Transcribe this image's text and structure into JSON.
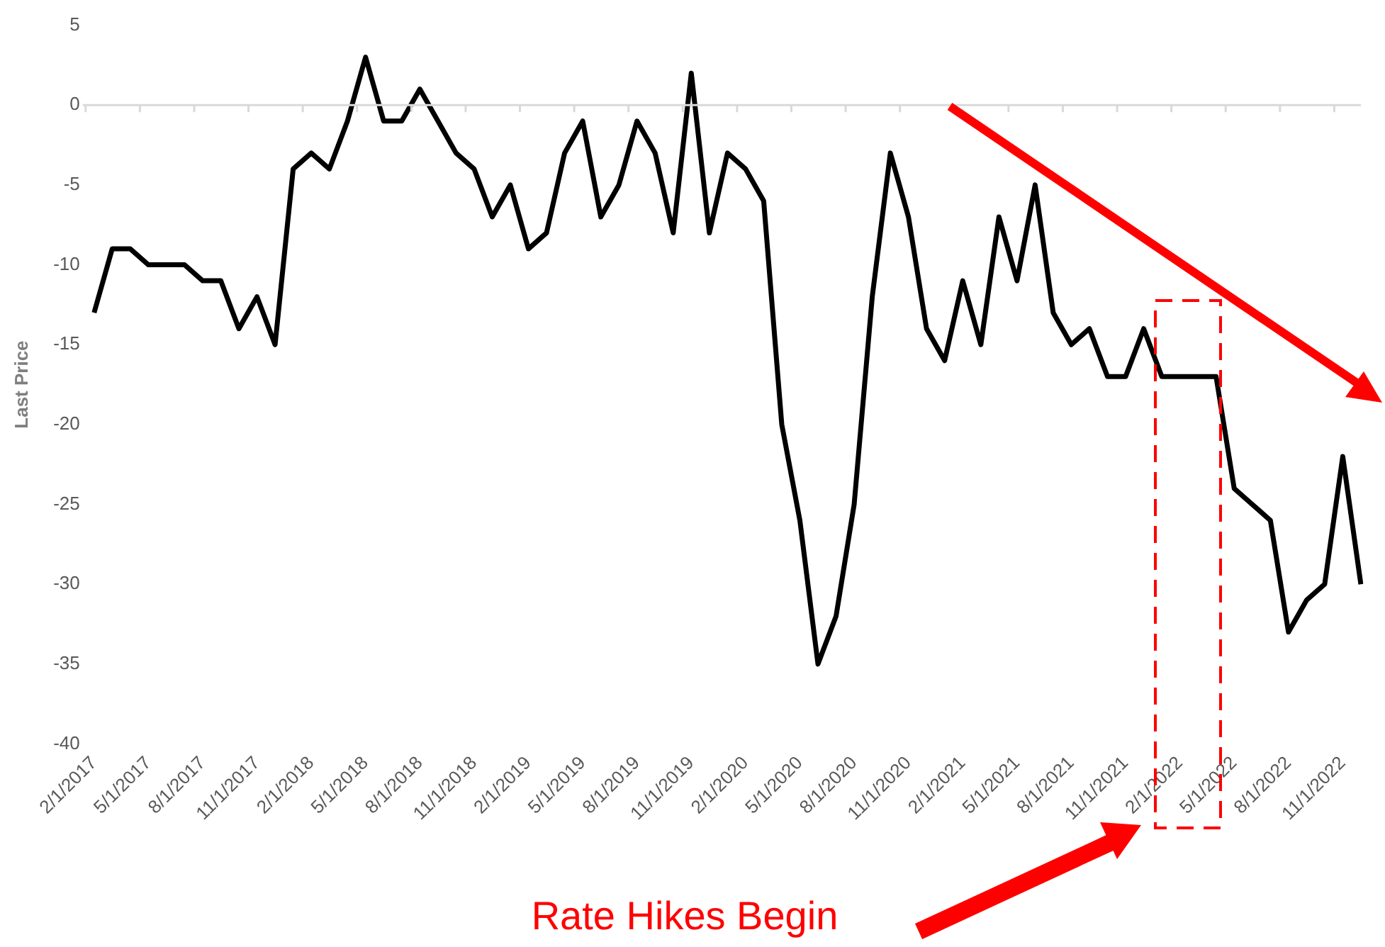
{
  "chart_data": {
    "type": "line",
    "ylabel": "Last Price",
    "categories": [
      "2/1/2017",
      null,
      null,
      "5/1/2017",
      null,
      null,
      "8/1/2017",
      null,
      null,
      "11/1/2017",
      null,
      null,
      "2/1/2018",
      null,
      null,
      "5/1/2018",
      null,
      null,
      "8/1/2018",
      null,
      null,
      "11/1/2018",
      null,
      null,
      "2/1/2019",
      null,
      null,
      "5/1/2019",
      null,
      null,
      "8/1/2019",
      null,
      null,
      "11/1/2019",
      null,
      null,
      "2/1/2020",
      null,
      null,
      "5/1/2020",
      null,
      null,
      "8/1/2020",
      null,
      null,
      "11/1/2020",
      null,
      null,
      "2/1/2021",
      null,
      null,
      "5/1/2021",
      null,
      null,
      "8/1/2021",
      null,
      null,
      "11/1/2021",
      null,
      null,
      "2/1/2022",
      null,
      null,
      "5/1/2022",
      null,
      null,
      "8/1/2022",
      null,
      null,
      "11/1/2022",
      null
    ],
    "series": [
      {
        "color": "#000000",
        "values": [
          -13,
          -9,
          -9,
          -10,
          -10,
          -10,
          -11,
          -11,
          -14,
          -12,
          -15,
          -4,
          -3,
          -4,
          -1,
          3,
          -1,
          -1,
          1,
          -1,
          -3,
          -4,
          -7,
          -5,
          -9,
          -8,
          -3,
          -1,
          -7,
          -5,
          -1,
          -3,
          -8,
          2,
          -8,
          -3,
          -4,
          -6,
          -20,
          -26,
          -35,
          -32,
          -25,
          -12,
          -3,
          -7,
          -14,
          -16,
          -11,
          -15,
          -7,
          -11,
          -5,
          -13,
          -15,
          -14,
          -17,
          -17,
          -14,
          -17,
          -17,
          -17,
          -17,
          -24,
          -25,
          -26,
          -33,
          -31,
          -30,
          -22,
          -30
        ]
      }
    ],
    "ylim": [
      -40,
      5
    ],
    "yticks": [
      -40,
      -35,
      -30,
      -25,
      -20,
      -15,
      -10,
      -5,
      0,
      5
    ],
    "grid": false,
    "legend": false,
    "marker": "none",
    "line_style": "solid",
    "ref_lines": [
      {
        "axis": "y",
        "value": 0,
        "color": "#d9d9d9"
      }
    ],
    "annotations": [
      "Rate Hikes Begin"
    ]
  }
}
